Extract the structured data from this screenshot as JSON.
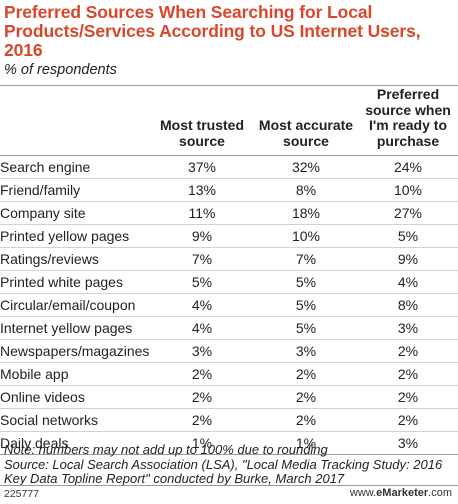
{
  "chart_data": {
    "type": "table",
    "title": "Preferred Sources When Searching for Local Products/Services According to US Internet Users, 2016",
    "subtitle": "% of respondents",
    "columns": [
      "Most trusted source",
      "Most accurate source",
      "Preferred source when I'm ready to purchase"
    ],
    "rows": [
      {
        "label": "Search engine",
        "values": [
          "37%",
          "32%",
          "24%"
        ]
      },
      {
        "label": "Friend/family",
        "values": [
          "13%",
          "8%",
          "10%"
        ]
      },
      {
        "label": "Company site",
        "values": [
          "11%",
          "18%",
          "27%"
        ]
      },
      {
        "label": "Printed yellow pages",
        "values": [
          "9%",
          "10%",
          "5%"
        ]
      },
      {
        "label": "Ratings/reviews",
        "values": [
          "7%",
          "7%",
          "9%"
        ]
      },
      {
        "label": "Printed white pages",
        "values": [
          "5%",
          "5%",
          "4%"
        ]
      },
      {
        "label": "Circular/email/coupon",
        "values": [
          "4%",
          "5%",
          "8%"
        ]
      },
      {
        "label": "Internet yellow pages",
        "values": [
          "4%",
          "5%",
          "3%"
        ]
      },
      {
        "label": "Newspapers/magazines",
        "values": [
          "3%",
          "3%",
          "2%"
        ]
      },
      {
        "label": "Mobile app",
        "values": [
          "2%",
          "2%",
          "2%"
        ]
      },
      {
        "label": "Online videos",
        "values": [
          "2%",
          "2%",
          "2%"
        ]
      },
      {
        "label": "Social networks",
        "values": [
          "2%",
          "2%",
          "2%"
        ]
      },
      {
        "label": "Daily deals",
        "values": [
          "1%",
          "1%",
          "3%"
        ]
      }
    ],
    "note": "Note: numbers may not add up to 100% due to rounding",
    "source": "Source: Local Search Association (LSA), \"Local Media Tracking Study: 2016 Key Data Topline Report\" conducted by Burke, March 2017",
    "chart_id": "225777",
    "site_prefix": "www.",
    "site_brand": "eMarketer",
    "site_suffix": ".com",
    "colors": {
      "title": "#d9472b",
      "text": "#222222",
      "rule": "#9a9a9a",
      "row_divider": "#d2d2d2"
    }
  }
}
